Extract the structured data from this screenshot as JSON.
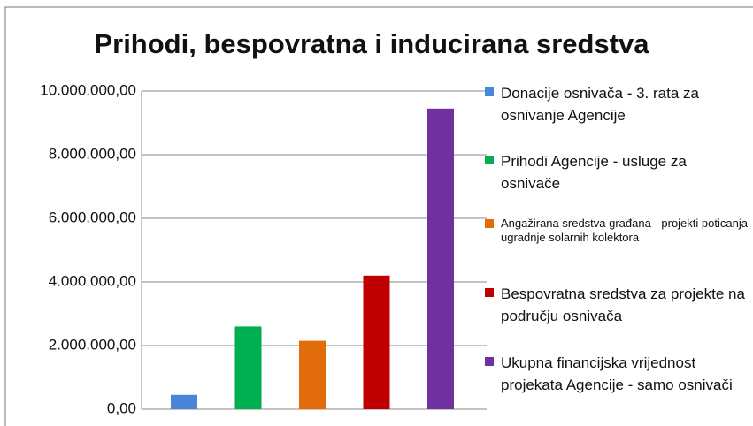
{
  "chart_data": {
    "type": "bar",
    "title": "Prihodi, bespovratna i inducirana sredstva",
    "series": [
      {
        "name": "Donacije osnivača - 3. rata za osnivanje Agencije",
        "color": "#4a86d8",
        "values": [
          450000
        ]
      },
      {
        "name": "Prihodi Agencije - usluge  za osnivače",
        "color": "#00b050",
        "values": [
          2600000
        ]
      },
      {
        "name": "Angažirana sredstva građana - projekti poticanja ugradnje solarnih kolektora",
        "color": "#e36c0a",
        "values": [
          2150000
        ]
      },
      {
        "name": "Bespovratna sredstva za projekte na području osnivača",
        "color": "#c00000",
        "values": [
          4200000
        ]
      },
      {
        "name": "Ukupna financijska vrijednost projekata Agencije - samo osnivači",
        "color": "#7030a0",
        "values": [
          9450000
        ]
      }
    ],
    "ylim": [
      0,
      10000000
    ],
    "yticks": [
      {
        "value": 0,
        "label": "0,00"
      },
      {
        "value": 2000000,
        "label": "2.000.000,00"
      },
      {
        "value": 4000000,
        "label": "4.000.000,00"
      },
      {
        "value": 6000000,
        "label": "6.000.000,00"
      },
      {
        "value": 8000000,
        "label": "8.000.000,00"
      },
      {
        "value": 10000000,
        "label": "10.000.000,00"
      }
    ],
    "grid": true,
    "legend": "right"
  }
}
